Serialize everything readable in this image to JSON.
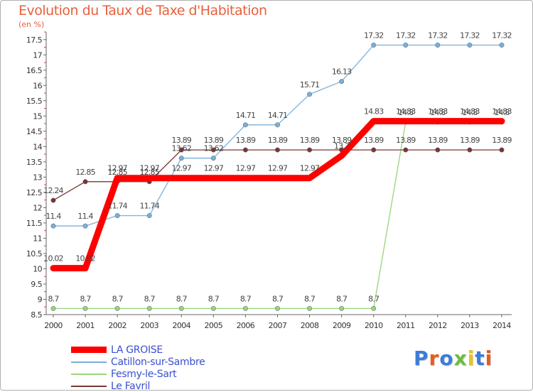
{
  "title": "Evolution du Taux de Taxe d'Habitation",
  "subtitle": "(en %)",
  "logo": {
    "text": "Proxiti",
    "colors": [
      "#3b7dd8",
      "#e85b1e",
      "#3b7dd8",
      "#6dbd3f",
      "#e8c41a",
      "#3b7dd8",
      "#e85b1e"
    ]
  },
  "chart_data": {
    "type": "line",
    "x": [
      "2000",
      "2001",
      "2002",
      "2003",
      "2004",
      "2005",
      "2006",
      "2007",
      "2008",
      "2009",
      "2010",
      "2011",
      "2012",
      "2013",
      "2014"
    ],
    "ylim": [
      8.5,
      17.75
    ],
    "yticks": [
      "8.5",
      "9",
      "9.5",
      "10",
      "10.5",
      "11",
      "11.5",
      "12",
      "12.5",
      "13",
      "13.5",
      "14",
      "14.5",
      "15",
      "15.5",
      "16",
      "16.5",
      "17",
      "17.5"
    ],
    "grid": false,
    "legend_position": "bottom-left",
    "series": [
      {
        "name": "LA GROISE",
        "color": "#ff0000",
        "values": [
          10.02,
          10.02,
          12.97,
          12.97,
          12.97,
          12.97,
          12.97,
          12.97,
          12.97,
          13.7,
          14.83,
          14.83,
          14.83,
          14.83,
          14.83
        ],
        "labels": [
          "10.02",
          "10.02",
          "",
          "",
          "",
          "",
          "",
          "",
          "",
          "",
          "",
          "",
          "",
          "",
          ""
        ]
      },
      {
        "name": "Catillon-sur-Sambre",
        "color": "#7bb0d9",
        "values": [
          11.4,
          11.4,
          11.74,
          11.74,
          13.62,
          13.62,
          14.71,
          14.71,
          15.71,
          16.13,
          17.32,
          17.32,
          17.32,
          17.32,
          17.32
        ],
        "labels": [
          "11.4",
          "11.4",
          "11.74",
          "11.74",
          "13.62",
          "13.62",
          "14.71",
          "14.71",
          "15.71",
          "16.13",
          "17.32",
          "17.32",
          "17.32",
          "17.32",
          "17.32"
        ]
      },
      {
        "name": "Fesmy-le-Sart",
        "color": "#98d47c",
        "values": [
          8.7,
          8.7,
          8.7,
          8.7,
          8.7,
          8.7,
          8.7,
          8.7,
          8.7,
          8.7,
          8.7,
          14.8,
          14.8,
          14.8,
          14.8
        ],
        "labels": [
          "8.7",
          "8.7",
          "8.7",
          "8.7",
          "8.7",
          "8.7",
          "8.7",
          "8.7",
          "8.7",
          "8.7",
          "8.7",
          "14.8",
          "14.8",
          "14.8",
          "14.8"
        ]
      },
      {
        "name": "Le Favril",
        "color": "#7a3636",
        "values": [
          12.24,
          12.85,
          12.85,
          12.85,
          13.89,
          13.89,
          13.89,
          13.89,
          13.89,
          13.89,
          13.89,
          13.89,
          13.89,
          13.89,
          13.89
        ],
        "labels": [
          "12.24",
          "12.85",
          "12.85",
          "12.85",
          "13.89",
          "13.89",
          "13.89",
          "13.89",
          "13.89",
          "13.89",
          "13.89",
          "13.89",
          "13.89",
          "13.89",
          "13.89"
        ]
      }
    ],
    "overlay_labels": [
      {
        "x": "2002",
        "y": 12.97,
        "text": "12.97"
      },
      {
        "x": "2003",
        "y": 12.97,
        "text": "12.97"
      },
      {
        "x": "2004",
        "y": 12.97,
        "text": "12.97"
      },
      {
        "x": "2005",
        "y": 12.97,
        "text": "12.97"
      },
      {
        "x": "2006",
        "y": 12.97,
        "text": "12.97"
      },
      {
        "x": "2007",
        "y": 12.97,
        "text": "12.97"
      },
      {
        "x": "2008",
        "y": 12.97,
        "text": "12.97"
      },
      {
        "x": "2009",
        "y": 13.7,
        "text": "13.7"
      },
      {
        "x": "2010",
        "y": 14.83,
        "text": "14.83"
      },
      {
        "x": "2011",
        "y": 14.83,
        "text": "14.83"
      },
      {
        "x": "2012",
        "y": 14.83,
        "text": "14.83"
      },
      {
        "x": "2013",
        "y": 14.83,
        "text": "14.83"
      },
      {
        "x": "2014",
        "y": 14.83,
        "text": "14.83"
      }
    ]
  }
}
